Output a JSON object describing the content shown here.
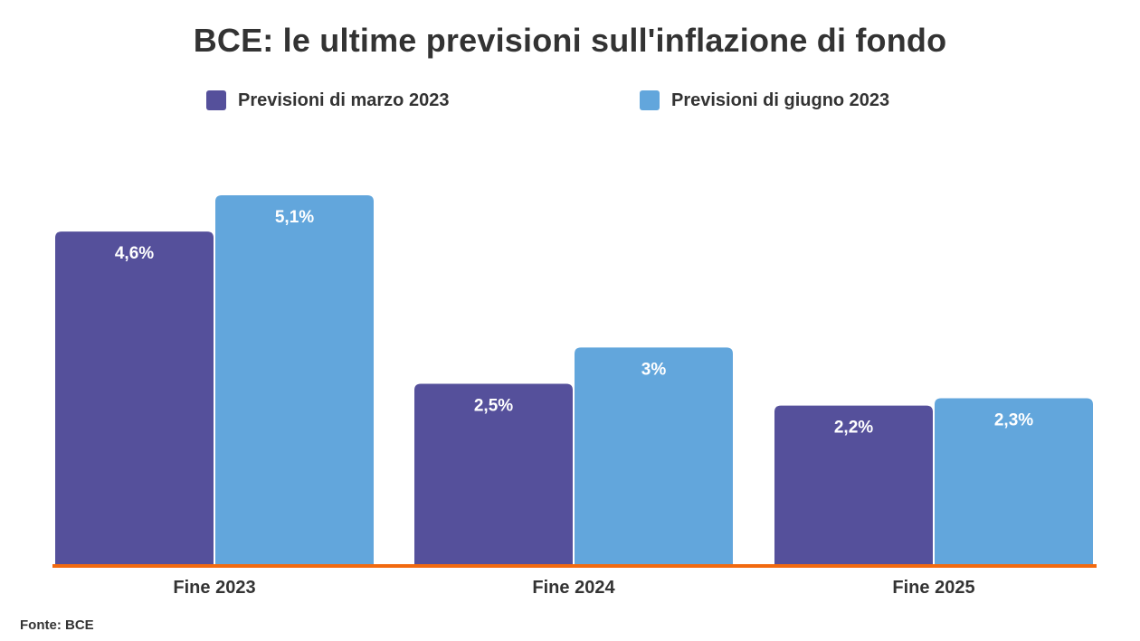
{
  "chart_data": {
    "type": "bar",
    "title": "BCE: le ultime previsioni sull'inflazione di fondo",
    "categories": [
      "Fine 2023",
      "Fine 2024",
      "Fine 2025"
    ],
    "series": [
      {
        "name": "Previsioni di marzo 2023",
        "values": [
          4.6,
          2.5,
          2.2
        ],
        "labels": [
          "4,6%",
          "2,5%",
          "2,2%"
        ],
        "color": "#55509b"
      },
      {
        "name": "Previsioni di giugno 2023",
        "values": [
          5.1,
          3.0,
          2.3
        ],
        "labels": [
          "5,1%",
          "3%",
          "2,3%"
        ],
        "color": "#62a6dc"
      }
    ],
    "xlabel": "",
    "ylabel": "",
    "ylim": [
      0,
      5.1
    ],
    "grid": false,
    "legend_position": "top",
    "baseline_color": "#f26a10",
    "data_label_color": "#ffffff"
  },
  "source": "Fonte: BCE"
}
